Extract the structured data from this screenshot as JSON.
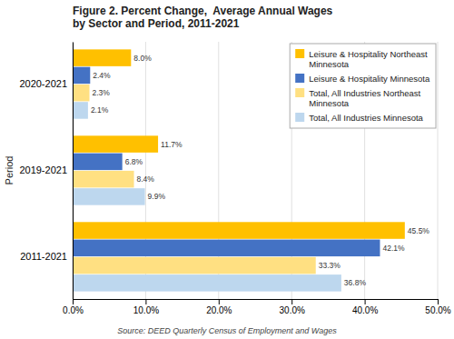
{
  "chart_data": {
    "type": "bar",
    "orientation": "horizontal",
    "title": "Figure 2. Percent Change,  Average Annual Wages\nby Sector and Period, 2011-2021",
    "y_label": "Period",
    "categories": [
      "2011-2021",
      "2019-2021",
      "2020-2021"
    ],
    "series": [
      {
        "name": "Leisure & Hospitality Northeast\nMinnesota",
        "color": "#FFC000",
        "values": [
          45.5,
          11.7,
          8.0
        ],
        "value_labels": [
          "45.5%",
          "11.7%",
          "8.0%"
        ]
      },
      {
        "name": "Leisure & Hospitality Minnesota",
        "color": "#4472C4",
        "values": [
          42.1,
          6.8,
          2.4
        ],
        "value_labels": [
          "42.1%",
          "6.8%",
          "2.4%"
        ]
      },
      {
        "name": "Total, All Industries Northeast\nMinnesota",
        "color": "#FFE082",
        "values": [
          33.3,
          8.4,
          2.3
        ],
        "value_labels": [
          "33.3%",
          "8.4%",
          "2.3%"
        ]
      },
      {
        "name": "Total, All Industries Minnesota",
        "color": "#BDD7EE",
        "values": [
          36.8,
          9.9,
          2.1
        ],
        "value_labels": [
          "36.8%",
          "9.9%",
          "2.1%"
        ]
      }
    ],
    "xlim": [
      0,
      50
    ],
    "xticks": [
      {
        "value": 0,
        "label": "0.0%"
      },
      {
        "value": 10,
        "label": "10.0%"
      },
      {
        "value": 20,
        "label": "20.0%"
      },
      {
        "value": 30,
        "label": "30.0%"
      },
      {
        "value": 40,
        "label": "40.0%"
      },
      {
        "value": 50,
        "label": "50.0%"
      }
    ],
    "grid": true,
    "legend": "upper right",
    "data_labels": true,
    "annotations": [
      "Source: DEED Quarterly Census of Employment and Wages"
    ]
  }
}
